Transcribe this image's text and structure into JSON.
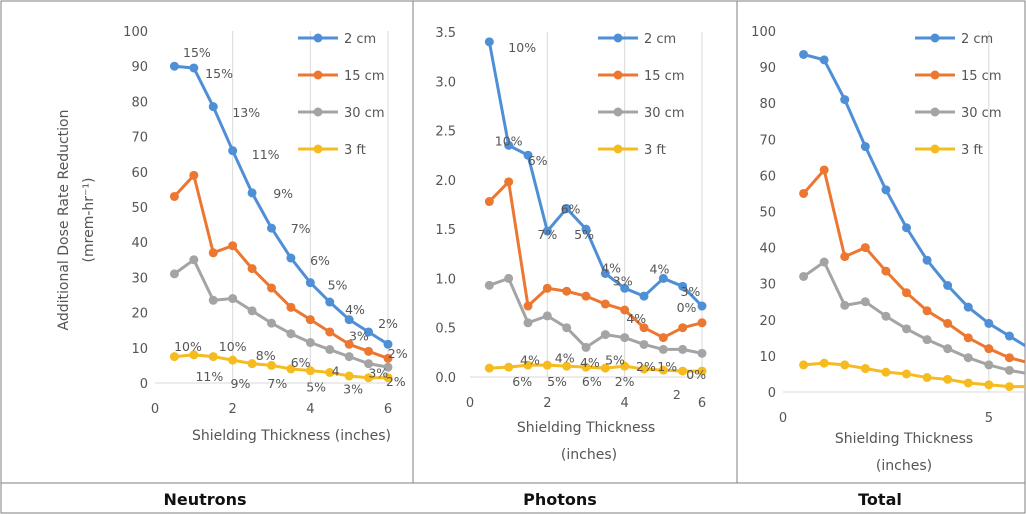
{
  "colors": {
    "s1": "#4f8fd6",
    "s2": "#ec7730",
    "s3": "#a4a4a4",
    "s4": "#f6bb1e",
    "grid": "#d9d9d9"
  },
  "chart_data": [
    {
      "type": "line",
      "caption": "Neutrons",
      "xlabel": "Shielding Thickness (inches)",
      "ylabel": "Additional Dose Rate Reduction",
      "ylabel_unit": "(mrem-hr⁻¹)",
      "xlim": [
        0,
        6
      ],
      "ylim": [
        0,
        100
      ],
      "xticks": [
        0,
        2,
        4,
        6
      ],
      "yticks": [
        0,
        10,
        20,
        30,
        40,
        50,
        60,
        70,
        80,
        90,
        100
      ],
      "legend": "top-right",
      "x": [
        0.5,
        1,
        1.5,
        2,
        2.5,
        3,
        3.5,
        4,
        4.5,
        5,
        5.5,
        6
      ],
      "series": [
        {
          "name": "2 cm",
          "values": [
            90,
            89.5,
            78.5,
            66,
            54,
            44,
            35.5,
            28.5,
            23,
            18,
            14.5,
            11
          ]
        },
        {
          "name": "15 cm",
          "values": [
            53,
            59,
            37,
            39,
            32.5,
            27,
            21.5,
            18,
            14.5,
            11,
            9,
            7
          ]
        },
        {
          "name": "30 cm",
          "values": [
            31,
            35,
            23.5,
            24,
            20.5,
            17,
            14,
            11.5,
            9.5,
            7.5,
            5.5,
            4.5
          ]
        },
        {
          "name": "3 ft",
          "values": [
            7.5,
            8,
            7.5,
            6.5,
            5.5,
            5,
            4,
            3.5,
            3,
            2,
            1.5,
            1.5
          ]
        }
      ],
      "annotations": [
        {
          "text": "15%",
          "x": 1.08,
          "y": 94
        },
        {
          "text": "15%",
          "x": 1.65,
          "y": 88
        },
        {
          "text": "13%",
          "x": 2.35,
          "y": 77
        },
        {
          "text": "11%",
          "x": 2.85,
          "y": 65
        },
        {
          "text": "9%",
          "x": 3.3,
          "y": 54
        },
        {
          "text": "7%",
          "x": 3.75,
          "y": 44
        },
        {
          "text": "6%",
          "x": 4.25,
          "y": 35
        },
        {
          "text": "5%",
          "x": 4.7,
          "y": 28
        },
        {
          "text": "4%",
          "x": 5.15,
          "y": 21
        },
        {
          "text": "3%",
          "x": 5.25,
          "y": 13.5
        },
        {
          "text": "2%",
          "x": 6.0,
          "y": 17
        },
        {
          "text": "2%",
          "x": 6.25,
          "y": 8.5
        },
        {
          "text": "10%",
          "x": 0.85,
          "y": 10.5
        },
        {
          "text": "10%",
          "x": 2.0,
          "y": 10.5
        },
        {
          "text": "8%",
          "x": 2.85,
          "y": 8
        },
        {
          "text": "6%",
          "x": 3.75,
          "y": 6
        },
        {
          "text": "4",
          "x": 4.65,
          "y": 3.5
        },
        {
          "text": "3%",
          "x": 5.75,
          "y": 3
        },
        {
          "text": "11%",
          "x": 1.4,
          "y": 2
        },
        {
          "text": "9%",
          "x": 2.2,
          "y": 0
        },
        {
          "text": "7%",
          "x": 3.15,
          "y": 0
        },
        {
          "text": "5%",
          "x": 4.15,
          "y": -1
        },
        {
          "text": "3%",
          "x": 5.1,
          "y": -1.5
        },
        {
          "text": "2%",
          "x": 6.2,
          "y": 0.5
        }
      ]
    },
    {
      "type": "line",
      "caption": "Photons",
      "xlabel": "Shielding Thickness",
      "xlabel_line2": "(inches)",
      "xlim": [
        0,
        6
      ],
      "ylim": [
        0,
        3.5
      ],
      "xticks": [
        0,
        2,
        4,
        6
      ],
      "yticks": [
        "0.0",
        "0.5",
        "1.0",
        "1.5",
        "2.0",
        "2.5",
        "3.0",
        "3.5"
      ],
      "legend": "top-right",
      "x": [
        0.5,
        1,
        1.5,
        2,
        2.5,
        3,
        3.5,
        4,
        4.5,
        5,
        5.5,
        6
      ],
      "series": [
        {
          "name": "2 cm",
          "values": [
            3.4,
            2.35,
            2.25,
            1.48,
            1.71,
            1.5,
            1.05,
            0.9,
            0.82,
            1.0,
            0.92,
            0.72
          ]
        },
        {
          "name": "15 cm",
          "values": [
            1.78,
            1.98,
            0.72,
            0.9,
            0.87,
            0.82,
            0.74,
            0.68,
            0.5,
            0.4,
            0.5,
            0.55
          ]
        },
        {
          "name": "30 cm",
          "values": [
            0.93,
            1.0,
            0.55,
            0.62,
            0.5,
            0.3,
            0.43,
            0.4,
            0.33,
            0.28,
            0.28,
            0.24
          ]
        },
        {
          "name": "3 ft",
          "values": [
            0.09,
            0.1,
            0.12,
            0.12,
            0.11,
            0.1,
            0.09,
            0.11,
            0.08,
            0.07,
            0.06,
            0.06
          ]
        }
      ],
      "annotations": [
        {
          "text": "10%",
          "x": 1.35,
          "y": 3.35
        },
        {
          "text": "10%",
          "x": 1.0,
          "y": 2.4
        },
        {
          "text": "6%",
          "x": 1.75,
          "y": 2.2
        },
        {
          "text": "6%",
          "x": 2.6,
          "y": 1.71
        },
        {
          "text": "7%",
          "x": 2.0,
          "y": 1.45
        },
        {
          "text": "5%",
          "x": 2.95,
          "y": 1.45
        },
        {
          "text": "4%",
          "x": 3.65,
          "y": 1.11
        },
        {
          "text": "3%",
          "x": 3.95,
          "y": 0.98
        },
        {
          "text": "4%",
          "x": 4.9,
          "y": 1.1
        },
        {
          "text": "3%",
          "x": 5.7,
          "y": 0.87
        },
        {
          "text": "0%",
          "x": 5.6,
          "y": 0.71
        },
        {
          "text": "4%",
          "x": 4.3,
          "y": 0.6
        },
        {
          "text": "4%",
          "x": 1.55,
          "y": 0.18
        },
        {
          "text": "4%",
          "x": 2.45,
          "y": 0.2
        },
        {
          "text": "4%",
          "x": 3.1,
          "y": 0.15
        },
        {
          "text": "5%",
          "x": 3.75,
          "y": 0.18
        },
        {
          "text": "2%",
          "x": 4.55,
          "y": 0.11
        },
        {
          "text": "1%",
          "x": 5.1,
          "y": 0.11
        },
        {
          "text": "0%",
          "x": 5.85,
          "y": 0.03
        },
        {
          "text": "6%",
          "x": 1.35,
          "y": -0.04
        },
        {
          "text": "5%",
          "x": 2.25,
          "y": -0.04
        },
        {
          "text": "6%",
          "x": 3.15,
          "y": -0.04
        },
        {
          "text": "2%",
          "x": 4.0,
          "y": -0.04
        },
        {
          "text": "2",
          "x": 5.35,
          "y": -0.17
        }
      ]
    },
    {
      "type": "line",
      "caption": "Total",
      "xlabel": "Shielding Thickness",
      "xlabel_line2": "(inches)",
      "xlim": [
        0,
        6
      ],
      "ylim": [
        0,
        100
      ],
      "xticks": [
        0,
        5
      ],
      "yticks": [
        0,
        10,
        20,
        30,
        40,
        50,
        60,
        70,
        80,
        90,
        100
      ],
      "legend": "top-right",
      "x": [
        0.5,
        1,
        1.5,
        2,
        2.5,
        3,
        3.5,
        4,
        4.5,
        5,
        5.5,
        6
      ],
      "series": [
        {
          "name": "2 cm",
          "values": [
            93.5,
            92,
            81,
            68,
            56,
            45.5,
            36.5,
            29.5,
            23.5,
            19,
            15.5,
            12
          ]
        },
        {
          "name": "15 cm",
          "values": [
            55,
            61.5,
            37.5,
            40,
            33.5,
            27.5,
            22.5,
            19,
            15,
            12,
            9.5,
            8
          ]
        },
        {
          "name": "30 cm",
          "values": [
            32,
            36,
            24,
            25,
            21,
            17.5,
            14.5,
            12,
            9.5,
            7.5,
            6,
            5
          ]
        },
        {
          "name": "3 ft",
          "values": [
            7.5,
            8,
            7.5,
            6.5,
            5.5,
            5,
            4,
            3.5,
            2.5,
            2,
            1.5,
            1.5
          ]
        }
      ]
    }
  ]
}
